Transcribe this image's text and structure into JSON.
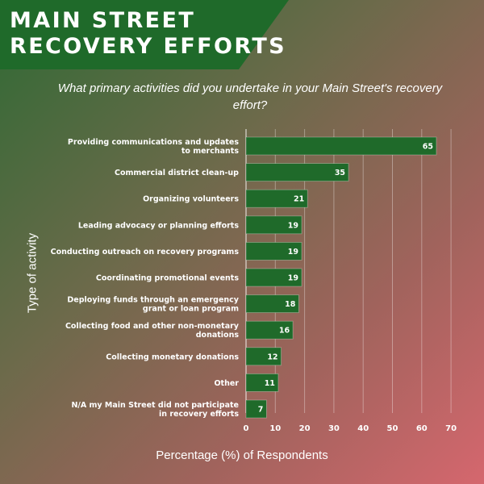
{
  "banner": {
    "title_line_1": "MAIN STREET",
    "title_line_2": "RECOVERY EFFORTS",
    "bg_color": "#1f6a2a"
  },
  "subtitle": "What primary activities did you undertake in your Main Street's recovery effort?",
  "colors": {
    "bar": "#1f6a2a",
    "bar_border": "#ffffff",
    "grid": "#ffffff",
    "text": "#ffffff"
  },
  "chart_data": {
    "type": "bar",
    "orientation": "horizontal",
    "xlabel": "Percentage (%) of Respondents",
    "ylabel": "Type of activity",
    "xlim": [
      0,
      70
    ],
    "xticks": [
      0,
      10,
      20,
      30,
      40,
      50,
      60,
      70
    ],
    "grid": true,
    "categories": [
      [
        "Providing communications and updates",
        "to merchants"
      ],
      [
        "Commercial district clean-up"
      ],
      [
        "Organizing volunteers"
      ],
      [
        "Leading advocacy or planning efforts"
      ],
      [
        "Conducting outreach on recovery programs"
      ],
      [
        "Coordinating promotional events"
      ],
      [
        "Deploying funds through an emergency",
        "grant or loan program"
      ],
      [
        "Collecting food and other non-monetary",
        "donations"
      ],
      [
        "Collecting monetary donations"
      ],
      [
        "Other"
      ],
      [
        "N/A my Main Street did not participate",
        "in recovery efforts"
      ]
    ],
    "values": [
      65,
      35,
      21,
      19,
      19,
      19,
      18,
      16,
      12,
      11,
      7
    ]
  }
}
